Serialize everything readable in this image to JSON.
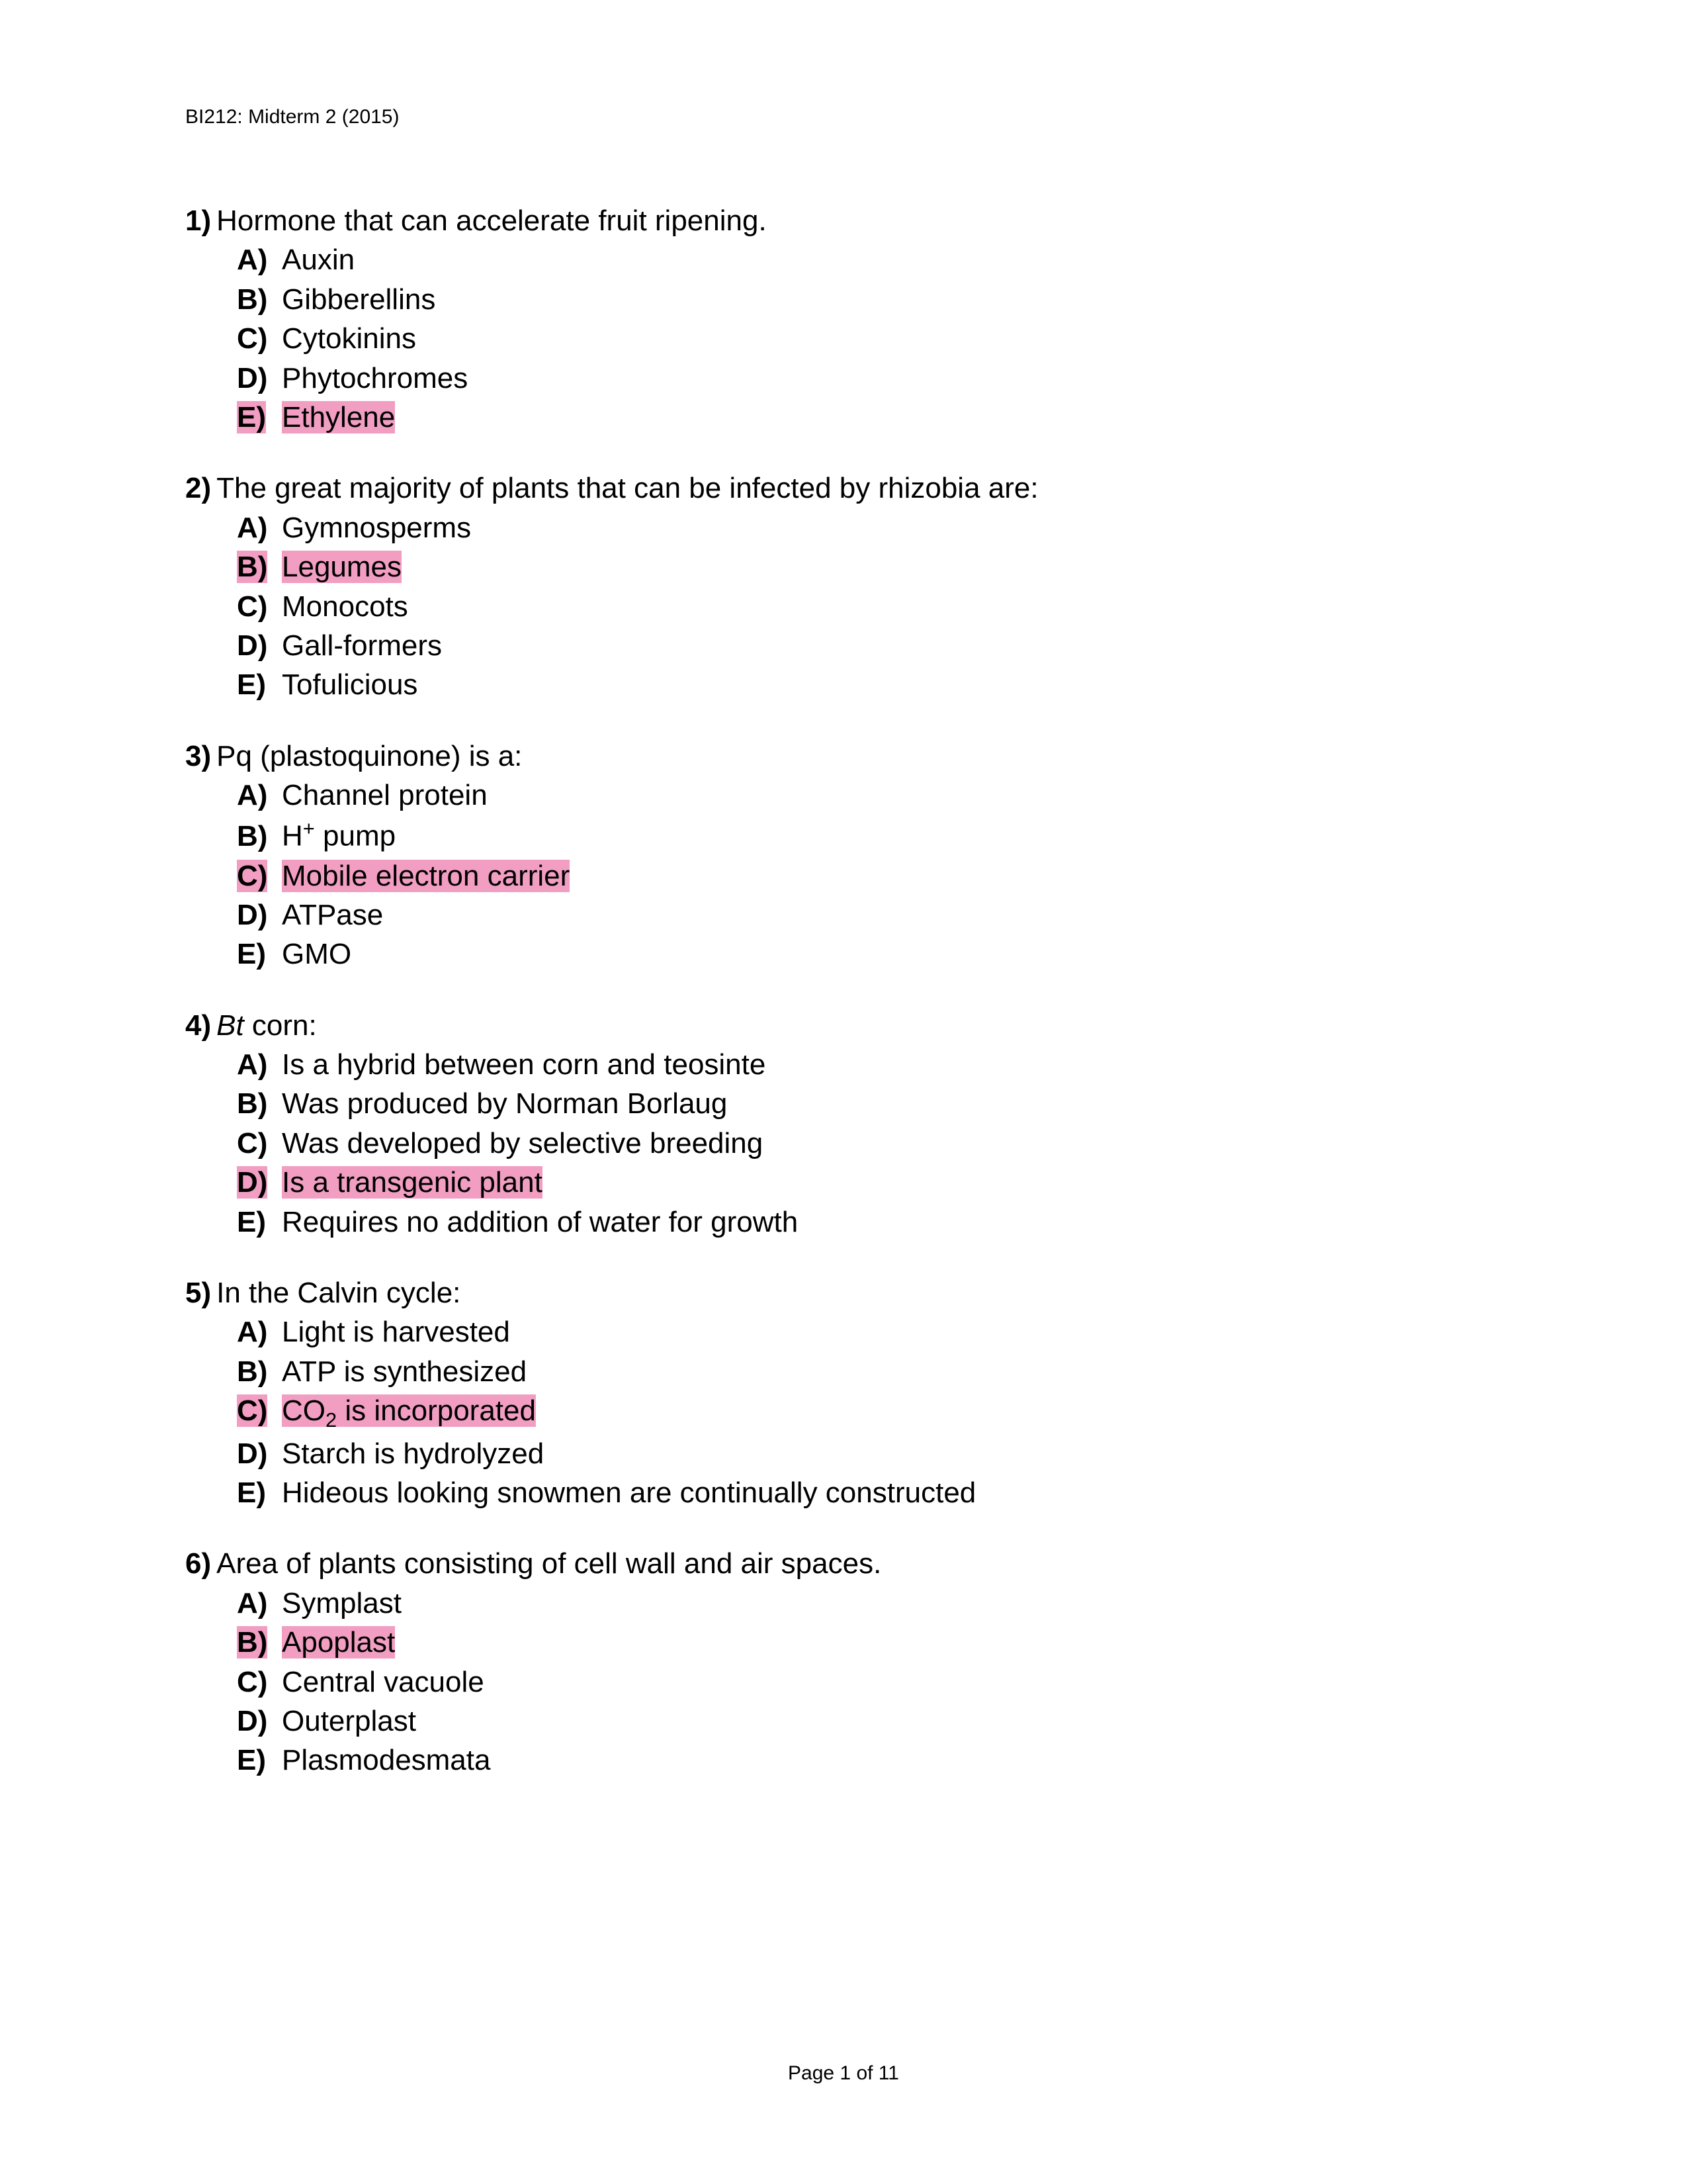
{
  "header": "BI212: Midterm 2 (2015)",
  "footer": "Page 1 of 11",
  "highlight_color": "#f19ec2",
  "background_color": "#ffffff",
  "text_color": "#000000",
  "header_fontsize": 30,
  "body_fontsize": 44,
  "footer_fontsize": 30,
  "questions": [
    {
      "number": "1)",
      "stem": "Hormone that can accelerate fruit ripening.",
      "stem_italic": false,
      "options": [
        {
          "letter": "A)",
          "text": "Auxin",
          "highlighted": false
        },
        {
          "letter": "B)",
          "text": "Gibberellins",
          "highlighted": false
        },
        {
          "letter": "C)",
          "text": "Cytokinins",
          "highlighted": false
        },
        {
          "letter": "D)",
          "text": "Phytochromes",
          "highlighted": false
        },
        {
          "letter": "E)",
          "text": "Ethylene",
          "highlighted": true
        }
      ]
    },
    {
      "number": "2)",
      "stem": "The great majority of plants that can be infected by rhizobia are:",
      "stem_italic": false,
      "options": [
        {
          "letter": "A)",
          "text": "Gymnosperms",
          "highlighted": false
        },
        {
          "letter": "B)",
          "text": "Legumes",
          "highlighted": true
        },
        {
          "letter": "C)",
          "text": "Monocots",
          "highlighted": false
        },
        {
          "letter": "D)",
          "text": "Gall-formers",
          "highlighted": false
        },
        {
          "letter": "E)",
          "text": "Tofulicious",
          "highlighted": false
        }
      ]
    },
    {
      "number": "3)",
      "stem": "Pq (plastoquinone) is a:",
      "stem_italic": false,
      "options": [
        {
          "letter": "A)",
          "text": "Channel protein",
          "highlighted": false
        },
        {
          "letter": "B)",
          "text": "H⁺ pump",
          "highlighted": false,
          "has_sup": true
        },
        {
          "letter": "C)",
          "text": "Mobile electron carrier",
          "highlighted": true
        },
        {
          "letter": "D)",
          "text": "ATPase",
          "highlighted": false
        },
        {
          "letter": "E)",
          "text": "GMO",
          "highlighted": false
        }
      ]
    },
    {
      "number": "4)",
      "stem_prefix": "Bt",
      "stem_suffix": " corn:",
      "stem_italic": true,
      "options": [
        {
          "letter": "A)",
          "text": "Is a hybrid between corn and teosinte",
          "highlighted": false
        },
        {
          "letter": "B)",
          "text": "Was produced by Norman Borlaug",
          "highlighted": false
        },
        {
          "letter": "C)",
          "text": "Was developed by selective breeding",
          "highlighted": false
        },
        {
          "letter": "D)",
          "text": "Is a transgenic plant",
          "highlighted": true
        },
        {
          "letter": "E)",
          "text": "Requires no addition of water for growth",
          "highlighted": false
        }
      ]
    },
    {
      "number": "5)",
      "stem": "In the Calvin cycle:",
      "stem_italic": false,
      "options": [
        {
          "letter": "A)",
          "text": "Light is harvested",
          "highlighted": false
        },
        {
          "letter": "B)",
          "text": "ATP is synthesized",
          "highlighted": false
        },
        {
          "letter": "C)",
          "text": "CO₂ is incorporated",
          "highlighted": true,
          "has_sub": true
        },
        {
          "letter": "D)",
          "text": "Starch is hydrolyzed",
          "highlighted": false
        },
        {
          "letter": "E)",
          "text": "Hideous looking snowmen are continually constructed",
          "highlighted": false
        }
      ]
    },
    {
      "number": "6)",
      "stem": "Area of plants consisting of cell wall and air spaces.",
      "stem_italic": false,
      "options": [
        {
          "letter": "A)",
          "text": "Symplast",
          "highlighted": false
        },
        {
          "letter": "B)",
          "text": "Apoplast",
          "highlighted": true
        },
        {
          "letter": "C)",
          "text": "Central vacuole",
          "highlighted": false
        },
        {
          "letter": "D)",
          "text": "Outerplast",
          "highlighted": false
        },
        {
          "letter": "E)",
          "text": "Plasmodesmata",
          "highlighted": false
        }
      ]
    }
  ]
}
